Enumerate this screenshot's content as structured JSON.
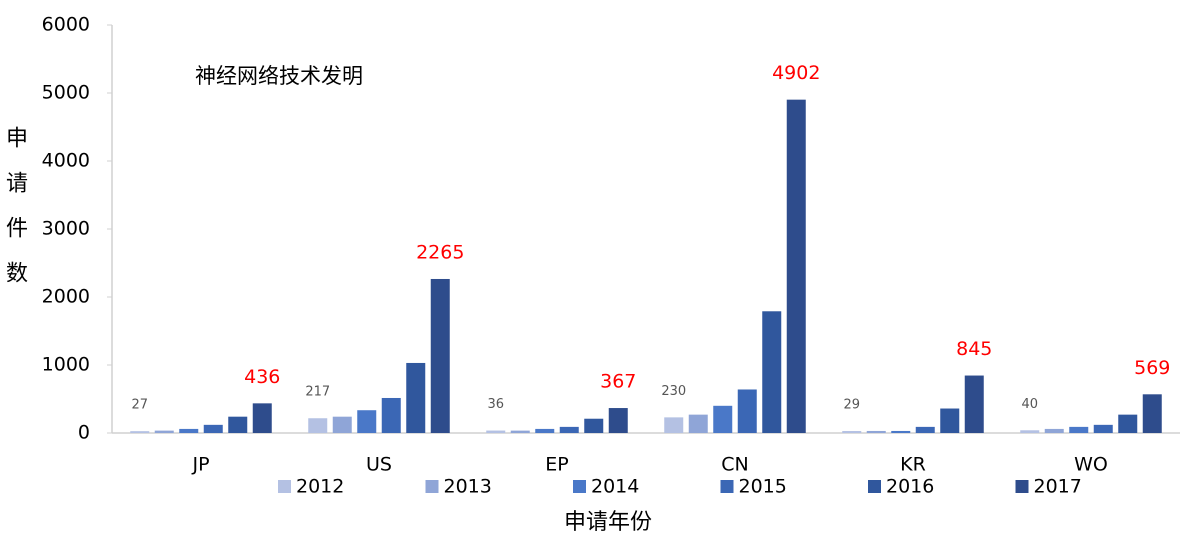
{
  "chart_data": {
    "type": "bar",
    "annotation": "神经网络技术发明",
    "y_label": "申请件数",
    "x_label": "申请年份",
    "categories": [
      "JP",
      "US",
      "EP",
      "CN",
      "KR",
      "WO"
    ],
    "series": [
      {
        "name": "2012",
        "color": "#b4c1e3",
        "values": [
          27,
          217,
          36,
          230,
          29,
          40
        ],
        "data_labels": true,
        "label_color": "#555555"
      },
      {
        "name": "2013",
        "color": "#8fa5d7",
        "values": [
          35,
          240,
          35,
          270,
          30,
          60
        ],
        "data_labels": false
      },
      {
        "name": "2014",
        "color": "#4a78c8",
        "values": [
          60,
          335,
          60,
          400,
          30,
          90
        ],
        "data_labels": false
      },
      {
        "name": "2015",
        "color": "#3b67b5",
        "values": [
          120,
          515,
          90,
          640,
          90,
          120
        ],
        "data_labels": false
      },
      {
        "name": "2016",
        "color": "#30579d",
        "values": [
          240,
          1030,
          210,
          1790,
          360,
          270
        ],
        "data_labels": false
      },
      {
        "name": "2017",
        "color": "#2e4c8c",
        "values": [
          436,
          2265,
          367,
          4902,
          845,
          569
        ],
        "data_labels": true,
        "label_color": "#ff0000"
      }
    ],
    "ylim": [
      0,
      6000
    ],
    "yticks": [
      0,
      1000,
      2000,
      3000,
      4000,
      5000,
      6000
    ],
    "grid": false,
    "legend": "bottom"
  }
}
